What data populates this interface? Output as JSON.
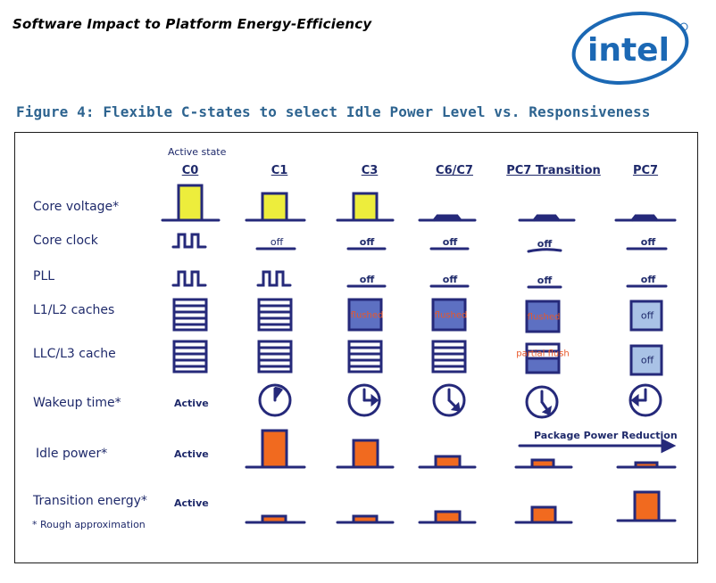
{
  "header": {
    "doc_title": "Software Impact to Platform Energy-Efficiency",
    "logo_text": "intel",
    "figure_title": "Figure 4: Flexible C-states to select Idle Power Level vs. Responsiveness"
  },
  "diagram": {
    "active_state_note": "Active state",
    "columns": [
      "C0",
      "C1",
      "C3",
      "C6/C7",
      "PC7 Transition",
      "PC7"
    ],
    "rows": [
      "Core voltage*",
      "Core clock",
      "PLL",
      "L1/L2 caches",
      "LLC/L3 cache",
      "Wakeup time*",
      "Idle power*",
      "Transition energy*"
    ],
    "labels": {
      "off": "off",
      "flushed": "flushed",
      "partial_flush": "partial flush",
      "active": "Active",
      "package_power_reduction": "Package Power Reduction"
    },
    "footnote": "* Rough approximation",
    "colors": {
      "navy": "#25297a",
      "yellow": "#eded3c",
      "orange": "#f16a1f",
      "flushed_fill": "#5d70c2",
      "off_fill": "#a9c2e6",
      "title_blue": "#2e6490",
      "logo_blue": "#1b68b4"
    }
  }
}
